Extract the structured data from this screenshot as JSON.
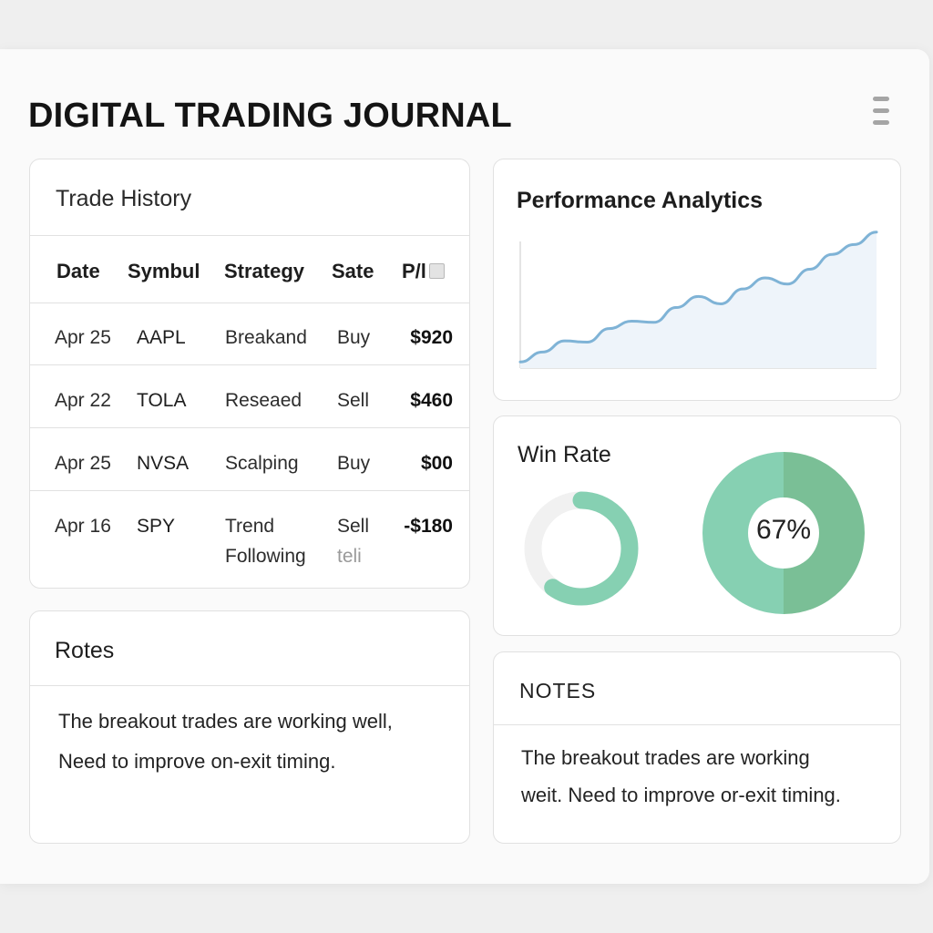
{
  "app": {
    "title": "DIGITAL TRADING JOURNAL"
  },
  "trade_history": {
    "title": "Trade History",
    "columns": [
      "Date",
      "Symbul",
      "Strategy",
      "Sate",
      "P/l"
    ],
    "rows": [
      {
        "date": "Apr 25",
        "symbol": "AAPL",
        "strategy": "Breakand",
        "side": "Buy",
        "pl": "$920"
      },
      {
        "date": "Apr 22",
        "symbol": "TOLA",
        "strategy": "Reseaed",
        "side": "Sell",
        "pl": "$460"
      },
      {
        "date": "Apr 25",
        "symbol": "NVSA",
        "strategy": "Scalping",
        "side": "Buy",
        "pl": "$00"
      },
      {
        "date": "Apr 16",
        "symbol": "SPY",
        "strategy_line1": "Trend",
        "strategy_line2": "Following",
        "side": "Sell",
        "side_extra": "teli",
        "pl": "-$180"
      }
    ]
  },
  "performance": {
    "title": "Performance Analytics",
    "line_color": "#7fb3d6",
    "fill_color": "#eef4fa"
  },
  "chart_data": {
    "type": "area",
    "title": "Performance Analytics",
    "xlabel": "",
    "ylabel": "",
    "x": [
      0,
      1,
      2,
      3,
      4,
      5,
      6,
      7,
      8,
      9,
      10,
      11,
      12,
      13,
      14,
      15,
      16
    ],
    "values": [
      5,
      13,
      22,
      21,
      32,
      38,
      37,
      49,
      58,
      52,
      64,
      73,
      68,
      80,
      92,
      100,
      110
    ],
    "ylim": [
      0,
      115
    ],
    "grid": false
  },
  "win_rate": {
    "title": "Win Rate",
    "percent_label": "67%",
    "small_ring_fraction": 0.6,
    "big_donut_fraction": 0.5,
    "color_light": "#86d0b2",
    "color_dark": "#7abf96",
    "track_color": "#f1f1f1"
  },
  "notes_left": {
    "title": "Rotes",
    "line1": "The breakout trades are working well,",
    "line2": "Need to improve on-exit timing."
  },
  "notes_right": {
    "title": "NOTES",
    "line1": "The breakout trades are working",
    "line2": "weit. Need to improve or-exit timing."
  }
}
